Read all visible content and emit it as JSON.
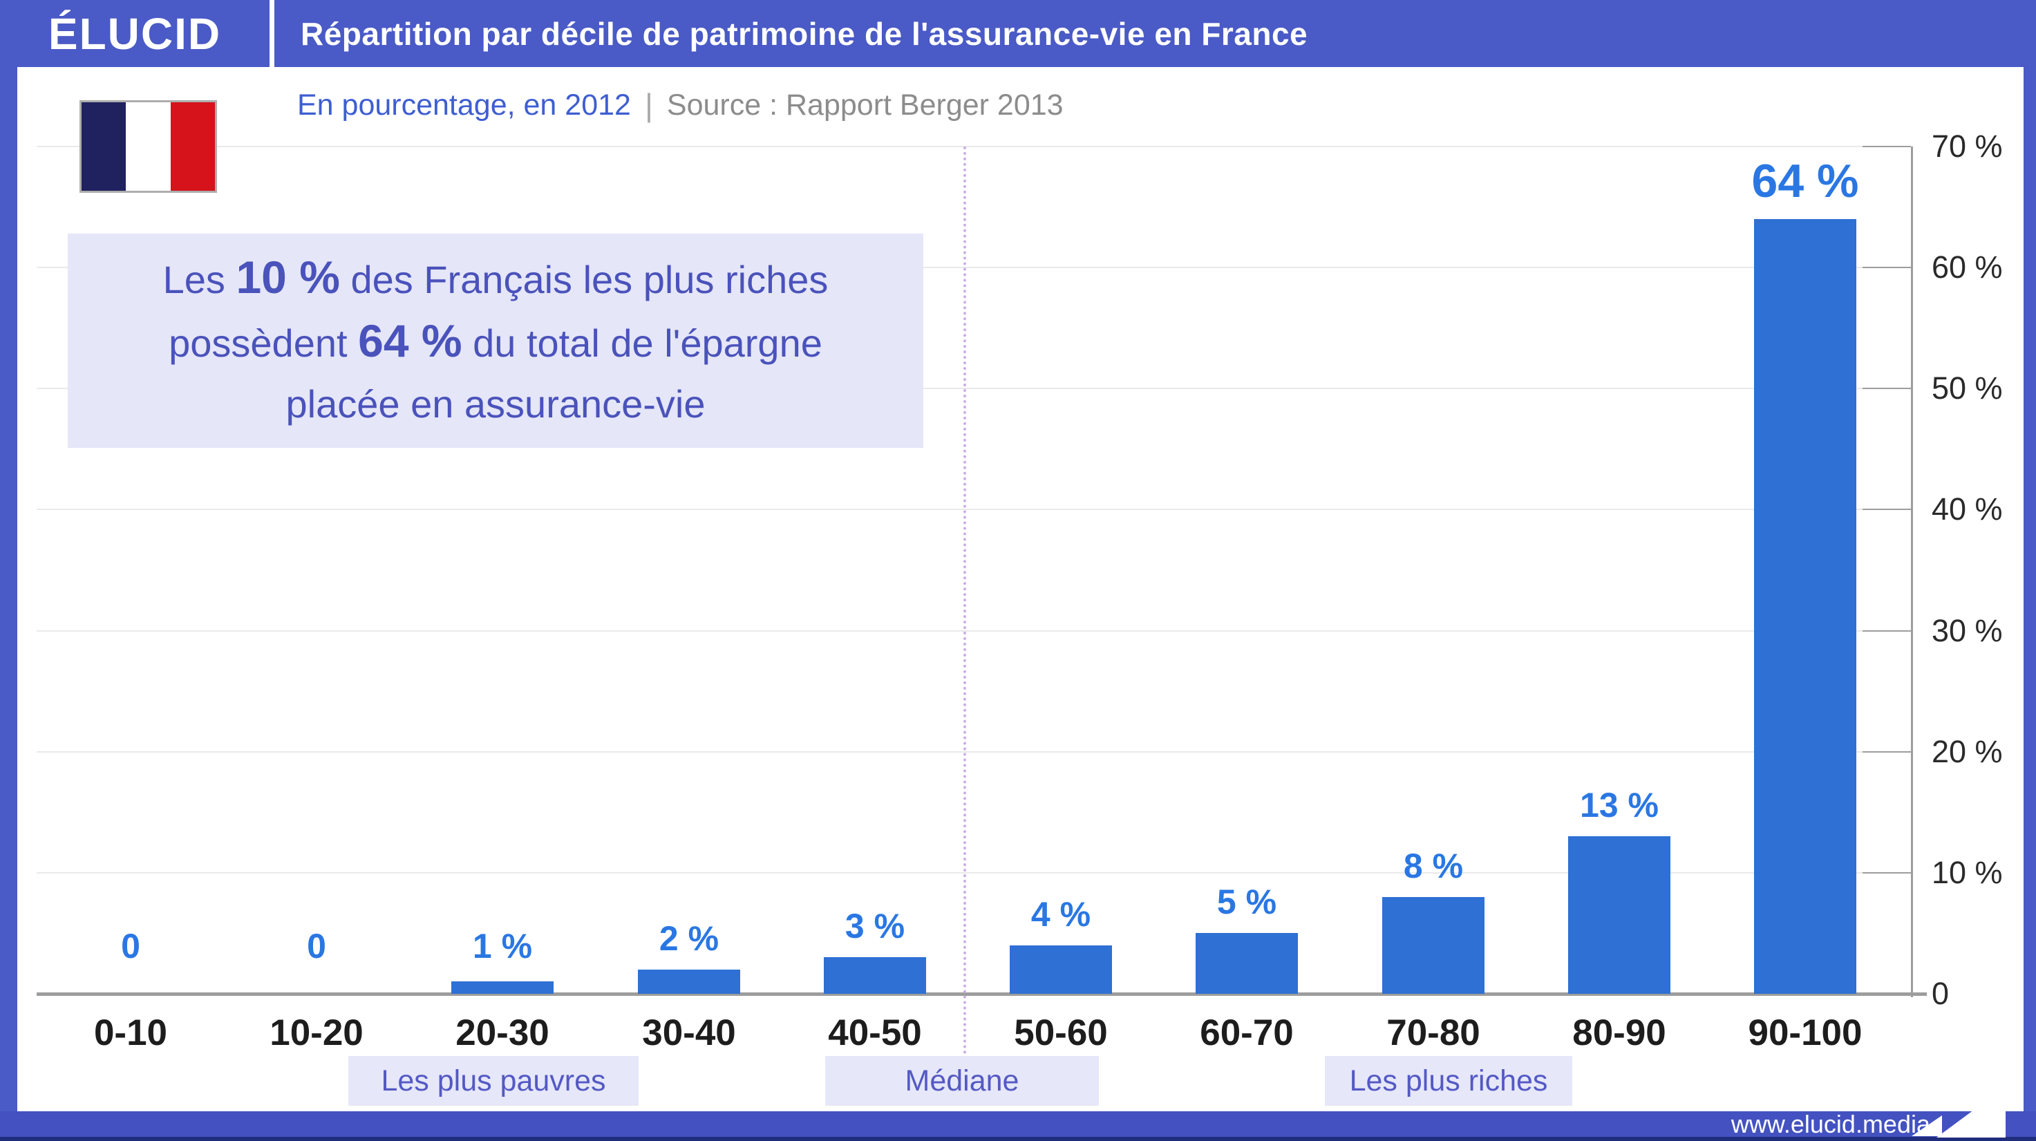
{
  "header": {
    "logo": "ÉLUCID",
    "title": "Répartition par décile de patrimoine de l'assurance-vie en France"
  },
  "subtitle": {
    "accent": "En pourcentage, en 2012",
    "separator": "|",
    "source": "Source : Rapport Berger 2013"
  },
  "flag": {
    "name": "france-flag",
    "colors": {
      "blue": "#20215F",
      "white": "#FFFFFF",
      "red": "#D6121B"
    }
  },
  "annotation": {
    "lines": [
      [
        {
          "t": "Les ",
          "b": false
        },
        {
          "t": "10 %",
          "b": true
        },
        {
          "t": " des Français les plus riches",
          "b": false
        }
      ],
      [
        {
          "t": "possèdent ",
          "b": false
        },
        {
          "t": "64 %",
          "b": true
        },
        {
          "t": " du total de l'épargne",
          "b": false
        }
      ],
      [
        {
          "t": "placée en assurance-vie",
          "b": false
        }
      ]
    ]
  },
  "chart_data": {
    "type": "bar",
    "title": "Répartition par décile de patrimoine de l'assurance-vie en France",
    "subtitle": "En pourcentage, en 2012",
    "source": "Source : Rapport Berger 2013",
    "categories": [
      "0-10",
      "10-20",
      "20-30",
      "30-40",
      "40-50",
      "50-60",
      "60-70",
      "70-80",
      "80-90",
      "90-100"
    ],
    "values": [
      0,
      0,
      1,
      2,
      3,
      4,
      5,
      8,
      13,
      64
    ],
    "value_labels": [
      "0",
      "0",
      "1 %",
      "2 %",
      "3 %",
      "4 %",
      "5 %",
      "8 %",
      "13 %",
      "64 %"
    ],
    "unit": "%",
    "ylim": [
      0,
      70
    ],
    "y_ticks": [
      70,
      60,
      50,
      40,
      30,
      20,
      10,
      0
    ],
    "y_tick_labels": [
      "70 %",
      "60 %",
      "50 %",
      "40 %",
      "30 %",
      "20 %",
      "10 %",
      "0"
    ],
    "grid": true,
    "legend": false,
    "median_line_between": [
      "40-50",
      "50-60"
    ],
    "zones": [
      {
        "label": "Les plus pauvres",
        "anchor": "20-30"
      },
      {
        "label": "Médiane",
        "anchor": "40-50 / 50-60"
      },
      {
        "label": "Les plus riches",
        "anchor": "70-80"
      }
    ]
  },
  "footer": {
    "url": "www.elucid.media"
  },
  "colors": {
    "header_bg": "#4A5AC6",
    "footer_bg": "#4352C0",
    "footer_edge": "#202C7C",
    "bar": "#2E70D3",
    "value_label": "#2A77E3",
    "subtitle_accent": "#3E5ED0",
    "muted_text": "#8C8C8C",
    "annotation_bg": "#E5E6F7",
    "annotation_text": "#4A52BB",
    "badge_bg": "#E6E7F8",
    "badge_text": "#5459C4",
    "axis": "#9D9D9D",
    "gridline": "#E9E9E9",
    "median_line": "#C9ADE6",
    "x_label": "#1D1D1D",
    "y_label": "#2A2A2A"
  }
}
